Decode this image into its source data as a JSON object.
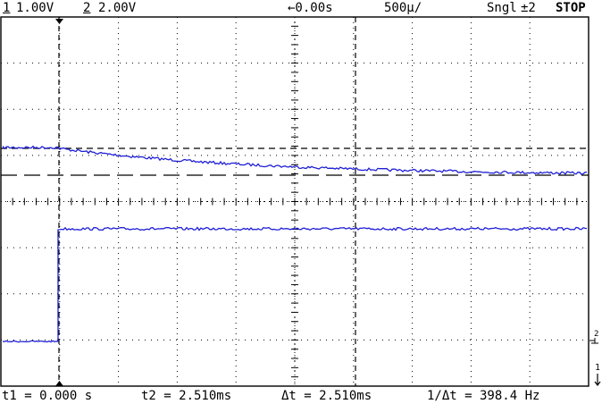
{
  "topbar": {
    "ch1_number": "1",
    "ch1_scale": "1.00V",
    "ch2_number": "2",
    "ch2_scale": "2.00V",
    "delay": "←0.00s",
    "timebase": "500µ/",
    "trigger_mode": "Sngl",
    "trigger_source": "±2",
    "run_state": "STOP"
  },
  "cursors": {
    "t1": "t1 = 0.000 s",
    "t2": "t2 = 2.510ms",
    "delta_t": "Δt = 2.510ms",
    "inverse_delta_t": "1/Δt = 398.4 Hz"
  },
  "markers": {
    "ch2": "2",
    "ch1": "1"
  },
  "colors": {
    "trace": "#1f1fd6",
    "grid": "#000000",
    "background": "#ffffff"
  }
}
